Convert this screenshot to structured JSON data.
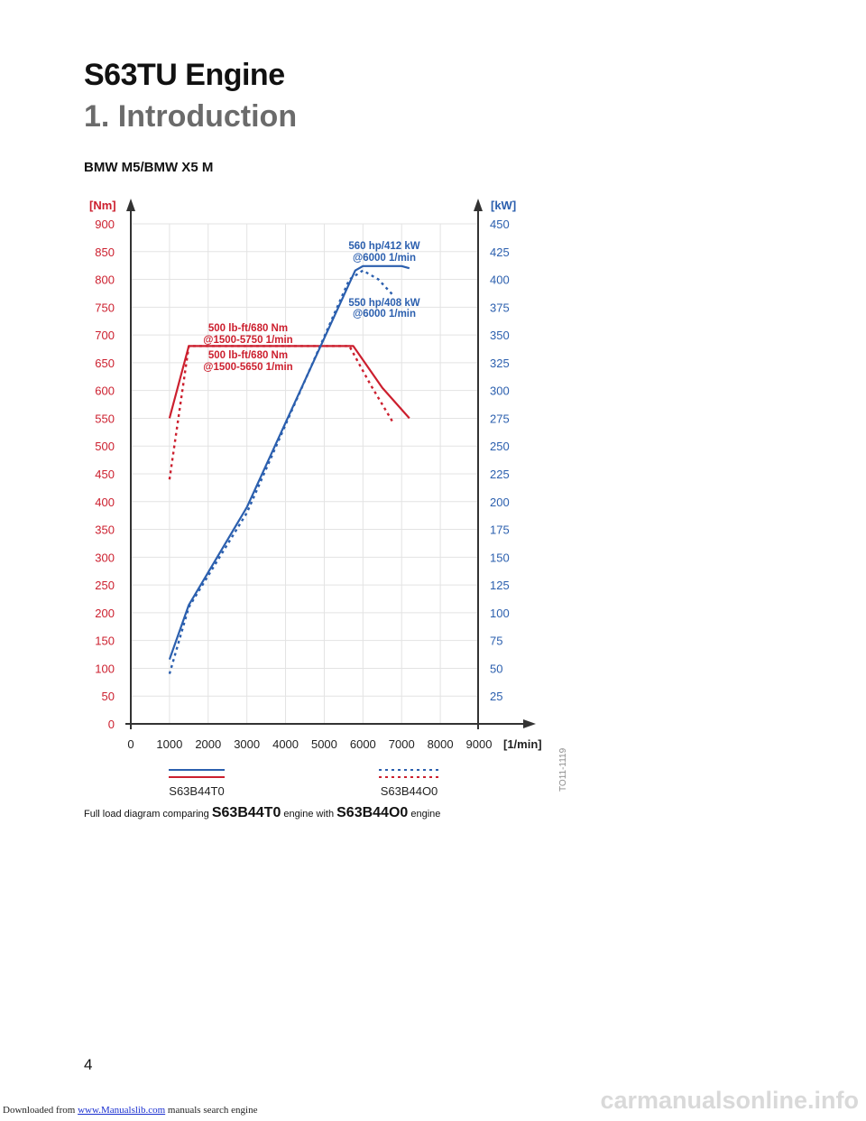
{
  "document": {
    "title": "S63TU Engine",
    "subtitle": "1. Introduction",
    "section_heading": "BMW M5/BMW X5 M",
    "caption": {
      "prefix": "Full load diagram comparing ",
      "engine_a": "S63B44T0",
      "middle": " engine with ",
      "engine_b": "S63B44O0",
      "suffix": " engine"
    },
    "page_number": "4"
  },
  "footer": {
    "downloaded_from": "Downloaded from ",
    "link_text": "www.Manualslib.com",
    "tail": " manuals search engine"
  },
  "watermark": "carmanualsonline.info",
  "chart_data": {
    "type": "line",
    "title": "",
    "xlabel": "[1/min]",
    "ylabel_left": "[Nm]",
    "ylabel_right": "[kW]",
    "xlim": [
      0,
      9000
    ],
    "ylim_left": [
      0,
      900
    ],
    "ylim_right": [
      0,
      450
    ],
    "x_ticks": [
      "0",
      "1000",
      "2000",
      "3000",
      "4000",
      "5000",
      "6000",
      "7000",
      "8000",
      "9000"
    ],
    "y_ticks_left": [
      "0",
      "50",
      "100",
      "150",
      "200",
      "250",
      "300",
      "350",
      "400",
      "450",
      "500",
      "550",
      "600",
      "650",
      "700",
      "750",
      "800",
      "850",
      "900"
    ],
    "y_ticks_right": [
      "25",
      "50",
      "75",
      "100",
      "125",
      "150",
      "175",
      "200",
      "225",
      "250",
      "275",
      "300",
      "325",
      "350",
      "375",
      "400",
      "425",
      "450"
    ],
    "grid": true,
    "image_id_label": "TO11-1119",
    "colors": {
      "torque": "#cc1f2e",
      "power": "#2b5fae",
      "axis": "#333333",
      "grid": "#e3e3e3",
      "left_ticks": "#cc1f2e",
      "right_ticks": "#2b5fae"
    },
    "series": [
      {
        "name": "S63B44T0",
        "quantity": "torque",
        "axis": "left",
        "style": "solid",
        "x": [
          1000,
          1500,
          5750,
          6500,
          7200
        ],
        "y": [
          550,
          680,
          680,
          605,
          550
        ]
      },
      {
        "name": "S63B44O0",
        "quantity": "torque",
        "axis": "left",
        "style": "dotted",
        "x": [
          1000,
          1500,
          5650,
          6200,
          6800
        ],
        "y": [
          440,
          680,
          680,
          610,
          540
        ]
      },
      {
        "name": "S63B44T0",
        "quantity": "power",
        "axis": "right",
        "style": "solid",
        "x": [
          1000,
          1500,
          3000,
          5800,
          6000,
          7000,
          7200
        ],
        "y": [
          58,
          107,
          195,
          408,
          412,
          412,
          410
        ]
      },
      {
        "name": "S63B44O0",
        "quantity": "power",
        "axis": "right",
        "style": "dotted",
        "x": [
          1000,
          1500,
          3000,
          5650,
          6000,
          6400,
          6800
        ],
        "y": [
          45,
          105,
          190,
          400,
          408,
          400,
          385
        ]
      }
    ],
    "annotations": [
      {
        "text": "560 hp/412 kW",
        "color": "#2b5fae"
      },
      {
        "text": "@6000 1/min",
        "color": "#2b5fae"
      },
      {
        "text": "550 hp/408 kW",
        "color": "#2b5fae"
      },
      {
        "text": "@6000 1/min",
        "color": "#2b5fae"
      },
      {
        "text": "500 lb-ft/680 Nm",
        "color": "#cc1f2e"
      },
      {
        "text": "@1500-5750 1/min",
        "color": "#cc1f2e"
      },
      {
        "text": "500 lb-ft/680 Nm",
        "color": "#cc1f2e"
      },
      {
        "text": "@1500-5650 1/min",
        "color": "#cc1f2e"
      }
    ],
    "legend": [
      {
        "label": "S63B44T0",
        "style": "solid"
      },
      {
        "label": "S63B44O0",
        "style": "dotted"
      }
    ],
    "legend_placement": "bottom"
  }
}
